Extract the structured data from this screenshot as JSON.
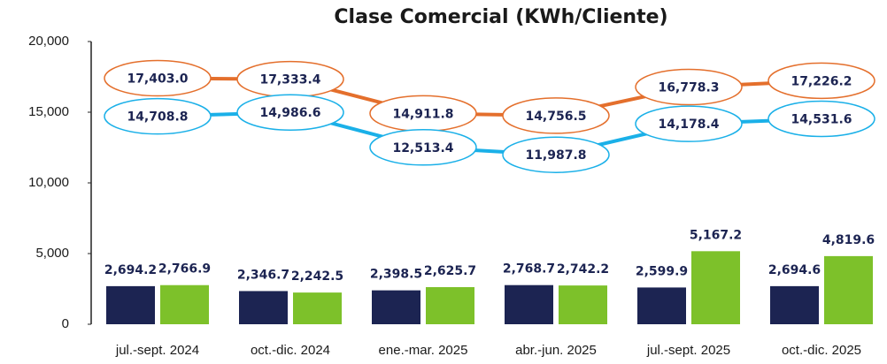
{
  "chart_data": {
    "type": "bar",
    "title": "Clase Comercial (KWh/Cliente)",
    "categories": [
      "jul.-sept. 2024",
      "oct.-dic. 2024",
      "ene.-mar. 2025",
      "abr.-jun. 2025",
      "jul.-sept. 2025",
      "oct.-dic. 2025"
    ],
    "ylim": [
      0,
      20000
    ],
    "yticks": [
      0,
      {
        "value": 5000,
        "label": "5,000"
      },
      {
        "value": 10000,
        "label": "10,000"
      },
      {
        "value": 15000,
        "label": "15,000"
      },
      {
        "value": 20000,
        "label": "20,000"
      }
    ],
    "grid": false,
    "series": [
      {
        "type": "bar",
        "color": "#1c2452",
        "values": [
          2694.2,
          2346.7,
          2398.5,
          2768.7,
          2599.9,
          2694.6
        ],
        "value_labels": [
          "2,694.2",
          "2,346.7",
          "2,398.5",
          "2,768.7",
          "2,599.9",
          "2,694.6"
        ]
      },
      {
        "type": "bar",
        "color": "#7dc12a",
        "values": [
          2766.9,
          2242.5,
          2625.7,
          2742.2,
          5167.2,
          4819.6
        ],
        "value_labels": [
          "2,766.9",
          "2,242.5",
          "2,625.7",
          "2,742.2",
          "5,167.2",
          "4,819.6"
        ]
      },
      {
        "type": "line",
        "color": "#e46f2c",
        "values": [
          17403.0,
          17333.4,
          14911.8,
          14756.5,
          16778.3,
          17226.2
        ],
        "value_labels": [
          "17,403.0",
          "17,333.4",
          "14,911.8",
          "14,756.5",
          "16,778.3",
          "17,226.2"
        ]
      },
      {
        "type": "line",
        "color": "#1ab0e8",
        "values": [
          14708.8,
          14986.6,
          12513.4,
          11987.8,
          14178.4,
          14531.6
        ],
        "value_labels": [
          "14,708.8",
          "14,986.6",
          "12,513.4",
          "11,987.8",
          "14,178.4",
          "14,531.6"
        ]
      }
    ]
  }
}
